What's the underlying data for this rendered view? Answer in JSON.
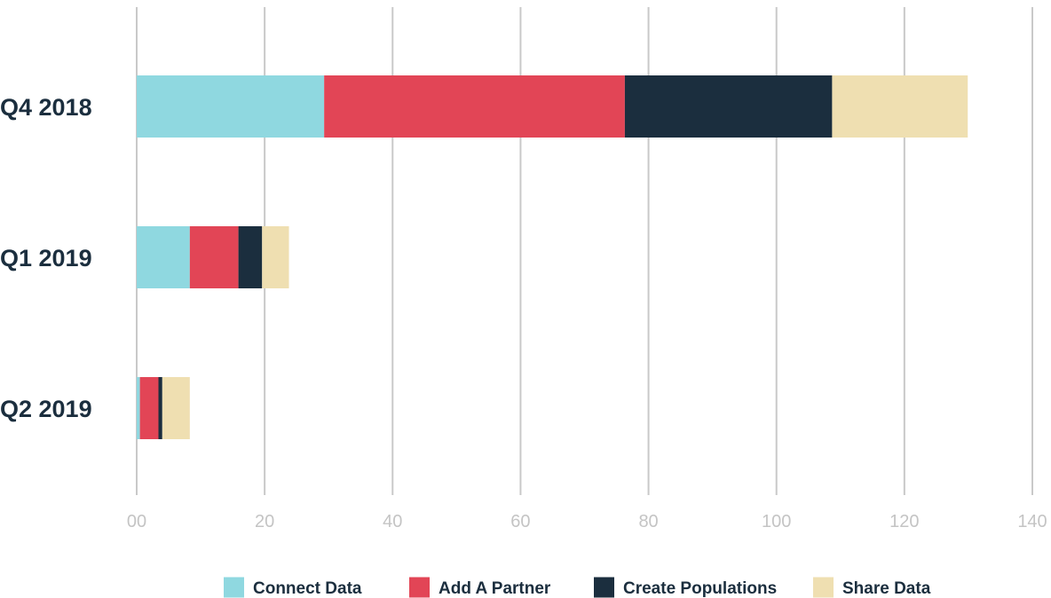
{
  "chart_data": {
    "type": "bar",
    "orientation": "horizontal",
    "stacked": true,
    "title": "",
    "xlabel": "",
    "ylabel": "",
    "categories": [
      "Q4 2018",
      "Q1 2019",
      "Q2 2019"
    ],
    "series": [
      {
        "name": "Connect Data",
        "color": "#8fd8e0",
        "values": [
          29.3,
          8.3,
          0.5
        ]
      },
      {
        "name": "Add A Partner",
        "color": "#e24556",
        "values": [
          47.0,
          7.6,
          2.9
        ]
      },
      {
        "name": "Create Populations",
        "color": "#1b2e3e",
        "values": [
          32.4,
          3.7,
          0.6
        ]
      },
      {
        "name": "Share Data",
        "color": "#efdfb1",
        "values": [
          21.2,
          4.2,
          4.3
        ]
      }
    ],
    "xlim": [
      0,
      140
    ],
    "xticks": [
      0,
      20,
      40,
      60,
      80,
      100,
      120,
      140
    ],
    "xtick_labels": [
      "00",
      "20",
      "40",
      "60",
      "80",
      "100",
      "120",
      "140"
    ],
    "grid": true,
    "legend_position": "bottom"
  }
}
